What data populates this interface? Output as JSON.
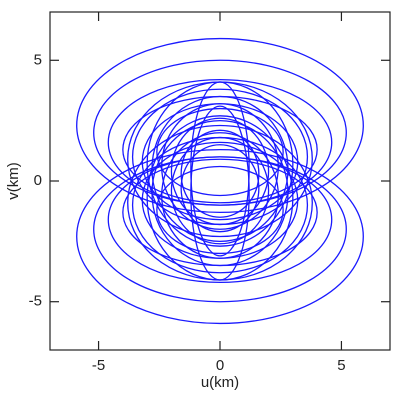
{
  "chart_data": {
    "type": "uv-tracks",
    "x_label": "u(km)",
    "y_label": "v(km)",
    "xlim": [
      -7,
      7
    ],
    "ylim": [
      -7,
      7
    ],
    "xticks": [
      -5,
      0,
      5
    ],
    "yticks": [
      -5,
      0,
      5
    ],
    "color": "#1a1aff",
    "tracks": {
      "u_semi": [
        5.9,
        5.9,
        5.2,
        5.2,
        4.6,
        4.6,
        4.0,
        4.0,
        3.6,
        3.6,
        3.2,
        3.2,
        2.8,
        2.8,
        2.4,
        2.4,
        2.0,
        2.0,
        1.6,
        1.6,
        3.8,
        3.8,
        3.0,
        3.0,
        1.2,
        1.2,
        2.6,
        2.6
      ],
      "v_semi": [
        3.6,
        3.6,
        3.0,
        3.0,
        2.6,
        2.6,
        2.2,
        2.2,
        2.8,
        2.8,
        2.4,
        2.4,
        3.0,
        3.0,
        2.6,
        2.6,
        2.2,
        2.2,
        1.8,
        1.8,
        3.2,
        3.2,
        3.4,
        3.4,
        3.6,
        3.6,
        1.8,
        1.8
      ],
      "v_center": [
        2.3,
        -2.3,
        2.0,
        -2.0,
        1.6,
        -1.6,
        1.3,
        -1.3,
        1.0,
        -1.0,
        0.8,
        -0.8,
        0.5,
        -0.5,
        0.6,
        -0.6,
        0.4,
        -0.4,
        0.3,
        -0.3,
        0.9,
        -0.9,
        0.7,
        -0.7,
        0.5,
        -0.5,
        1.2,
        -1.2
      ]
    }
  }
}
